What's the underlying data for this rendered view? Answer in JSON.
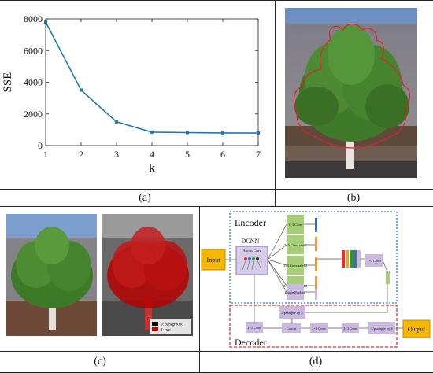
{
  "captions": {
    "a": "(a)",
    "b": "(b)",
    "c": "(c)",
    "d": "(d)"
  },
  "chart_data": {
    "type": "line",
    "xlabel": "k",
    "ylabel": "SSE",
    "x": [
      1,
      2,
      3,
      4,
      5,
      6,
      7
    ],
    "y": [
      7800,
      3500,
      1500,
      850,
      820,
      800,
      790
    ],
    "xlim": [
      1,
      7
    ],
    "ylim": [
      0,
      8000
    ],
    "xticks": [
      "1",
      "2",
      "3",
      "4",
      "5",
      "6",
      "7"
    ],
    "yticks": [
      "0",
      "2000",
      "4000",
      "6000",
      "8000"
    ],
    "series_color": "#1f77b4",
    "grid": false
  },
  "segmentation_legend": {
    "background": "0: background",
    "tree": "1: tree",
    "background_color": "#000000",
    "tree_color": "#b40000"
  },
  "diagram": {
    "input_label": "Input",
    "output_label": "Output",
    "encoder_label": "Encoder",
    "decoder_label": "Decoder",
    "dcnn_label": "DCNN",
    "atrous_label": "Atrous Conv",
    "branch_1x1": "1×1 Conv",
    "branch_3x3_r6": "3×3 Conv rate6",
    "branch_3x3_r12": "3×3 Conv rate12",
    "branch_3x3_r18": "3×3 Conv rate18",
    "branch_pool": "Image Pooling",
    "enc_1x1": "1×1 Conv",
    "dec_upsample_top": "Upsample by 4",
    "dec_1x1": "1×1 Conv",
    "dec_concat": "Concat",
    "dec_3x3_a": "3×3 Conv",
    "dec_3x3_b": "3×3 Conv",
    "dec_upsample_out": "Upsample by 4",
    "colors": {
      "io_fill": "#f5b800",
      "io_border": "#d08a00",
      "box_fill": "#c9b8e0",
      "green_box": "#a6cf78",
      "encoder_border": "#2a7fbf",
      "decoder_border": "#e03030"
    }
  }
}
